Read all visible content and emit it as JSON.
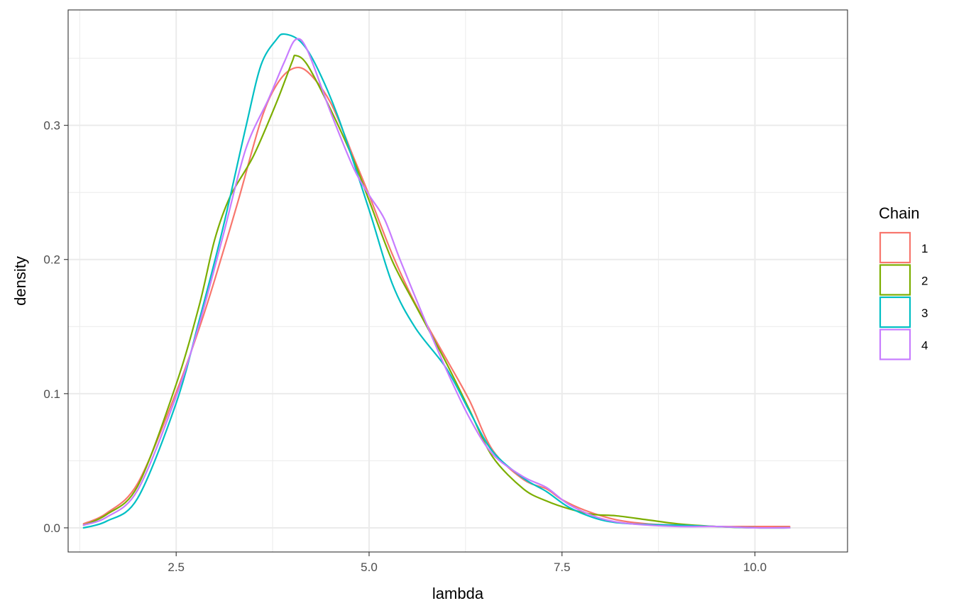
{
  "chart_data": {
    "type": "line",
    "xlabel": "lambda",
    "ylabel": "density",
    "xlim": [
      1.1,
      11.2
    ],
    "ylim": [
      -0.018,
      0.386
    ],
    "x_ticks": [
      2.5,
      5.0,
      7.5,
      10.0
    ],
    "x_tick_labels": [
      "2.5",
      "5.0",
      "7.5",
      "10.0"
    ],
    "y_ticks": [
      0.0,
      0.1,
      0.2,
      0.3
    ],
    "y_tick_labels": [
      "0.0",
      "0.1",
      "0.2",
      "0.3"
    ],
    "grid": true,
    "legend": {
      "title": "Chain",
      "position": "right"
    },
    "series": [
      {
        "name": "1",
        "color": "#F8766D",
        "points": [
          [
            1.3,
            0.003
          ],
          [
            1.6,
            0.011
          ],
          [
            2.0,
            0.033
          ],
          [
            2.5,
            0.101
          ],
          [
            2.8,
            0.149
          ],
          [
            3.0,
            0.185
          ],
          [
            3.3,
            0.243
          ],
          [
            3.6,
            0.304
          ],
          [
            3.8,
            0.33
          ],
          [
            4.0,
            0.342
          ],
          [
            4.2,
            0.34
          ],
          [
            4.5,
            0.317
          ],
          [
            4.8,
            0.276
          ],
          [
            5.0,
            0.248
          ],
          [
            5.3,
            0.204
          ],
          [
            5.6,
            0.167
          ],
          [
            6.0,
            0.126
          ],
          [
            6.3,
            0.095
          ],
          [
            6.6,
            0.058
          ],
          [
            7.0,
            0.036
          ],
          [
            7.3,
            0.029
          ],
          [
            7.5,
            0.021
          ],
          [
            7.8,
            0.013
          ],
          [
            8.2,
            0.006
          ],
          [
            8.6,
            0.003
          ],
          [
            9.0,
            0.002
          ],
          [
            9.5,
            0.001
          ],
          [
            10.0,
            0.001
          ],
          [
            10.45,
            0.001
          ]
        ]
      },
      {
        "name": "2",
        "color": "#7CAE00",
        "points": [
          [
            1.3,
            0.002
          ],
          [
            1.6,
            0.01
          ],
          [
            2.0,
            0.031
          ],
          [
            2.5,
            0.107
          ],
          [
            2.8,
            0.166
          ],
          [
            3.0,
            0.215
          ],
          [
            3.2,
            0.247
          ],
          [
            3.5,
            0.277
          ],
          [
            3.8,
            0.317
          ],
          [
            4.0,
            0.347
          ],
          [
            4.05,
            0.352
          ],
          [
            4.2,
            0.345
          ],
          [
            4.5,
            0.312
          ],
          [
            4.8,
            0.274
          ],
          [
            5.0,
            0.244
          ],
          [
            5.3,
            0.199
          ],
          [
            5.6,
            0.166
          ],
          [
            6.0,
            0.123
          ],
          [
            6.3,
            0.088
          ],
          [
            6.6,
            0.053
          ],
          [
            7.0,
            0.029
          ],
          [
            7.3,
            0.02
          ],
          [
            7.6,
            0.014
          ],
          [
            7.9,
            0.01
          ],
          [
            8.2,
            0.009
          ],
          [
            8.6,
            0.006
          ],
          [
            9.0,
            0.003
          ],
          [
            9.5,
            0.001
          ],
          [
            10.0,
            0.0
          ],
          [
            10.45,
            0.0
          ]
        ]
      },
      {
        "name": "3",
        "color": "#00BFC4",
        "points": [
          [
            1.3,
            0.0
          ],
          [
            1.6,
            0.005
          ],
          [
            2.0,
            0.022
          ],
          [
            2.5,
            0.093
          ],
          [
            2.8,
            0.155
          ],
          [
            3.1,
            0.222
          ],
          [
            3.4,
            0.298
          ],
          [
            3.6,
            0.345
          ],
          [
            3.8,
            0.364
          ],
          [
            3.9,
            0.368
          ],
          [
            4.1,
            0.363
          ],
          [
            4.3,
            0.346
          ],
          [
            4.6,
            0.306
          ],
          [
            5.0,
            0.237
          ],
          [
            5.3,
            0.182
          ],
          [
            5.6,
            0.149
          ],
          [
            6.0,
            0.119
          ],
          [
            6.3,
            0.087
          ],
          [
            6.6,
            0.057
          ],
          [
            7.0,
            0.037
          ],
          [
            7.3,
            0.027
          ],
          [
            7.6,
            0.015
          ],
          [
            8.0,
            0.006
          ],
          [
            8.4,
            0.003
          ],
          [
            9.0,
            0.002
          ],
          [
            9.5,
            0.001
          ],
          [
            10.0,
            0.0
          ],
          [
            10.45,
            0.0
          ]
        ]
      },
      {
        "name": "4",
        "color": "#C77CFF",
        "points": [
          [
            1.3,
            0.002
          ],
          [
            1.6,
            0.008
          ],
          [
            2.0,
            0.028
          ],
          [
            2.5,
            0.098
          ],
          [
            2.8,
            0.152
          ],
          [
            3.1,
            0.216
          ],
          [
            3.4,
            0.282
          ],
          [
            3.7,
            0.32
          ],
          [
            3.9,
            0.347
          ],
          [
            4.05,
            0.364
          ],
          [
            4.2,
            0.356
          ],
          [
            4.5,
            0.31
          ],
          [
            4.8,
            0.268
          ],
          [
            5.0,
            0.248
          ],
          [
            5.2,
            0.23
          ],
          [
            5.4,
            0.2
          ],
          [
            5.7,
            0.158
          ],
          [
            6.0,
            0.118
          ],
          [
            6.3,
            0.082
          ],
          [
            6.6,
            0.055
          ],
          [
            7.0,
            0.038
          ],
          [
            7.3,
            0.03
          ],
          [
            7.6,
            0.017
          ],
          [
            8.0,
            0.007
          ],
          [
            8.4,
            0.003
          ],
          [
            9.0,
            0.001
          ],
          [
            9.5,
            0.001
          ],
          [
            10.0,
            0.0
          ],
          [
            10.45,
            0.0
          ]
        ]
      }
    ]
  }
}
